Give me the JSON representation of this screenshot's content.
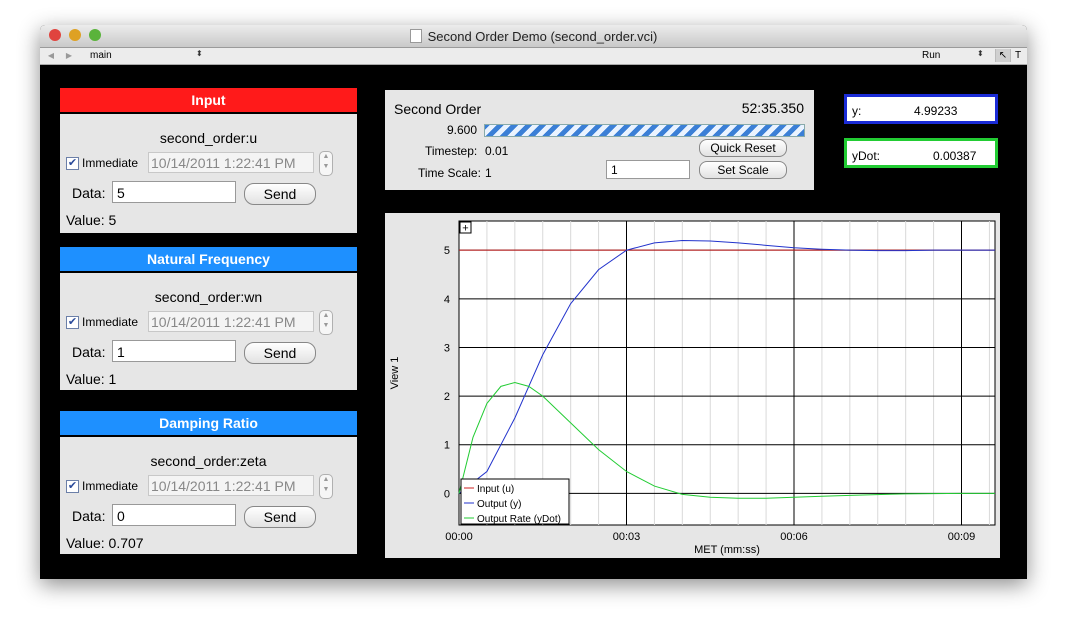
{
  "window": {
    "title": "Second Order Demo (second_order.vci)",
    "toolbar_selector": "main",
    "toolbar_mode": "Run",
    "toolbar_tool_pointer": "↖",
    "toolbar_tool_text": "T"
  },
  "panels": [
    {
      "header": "Input",
      "header_color": "#ff1a1a",
      "variable": "second_order:u",
      "immediate_label": "Immediate",
      "date": "10/14/2011   1:22:41 PM",
      "data_label": "Data:",
      "data_value": "5",
      "send_label": "Send",
      "value_line": "Value:  5"
    },
    {
      "header": "Natural Frequency",
      "header_color": "#1e90ff",
      "variable": "second_order:wn",
      "immediate_label": "Immediate",
      "date": "10/14/2011   1:22:41 PM",
      "data_label": "Data:",
      "data_value": "1",
      "send_label": "Send",
      "value_line": "Value:  1"
    },
    {
      "header": "Damping Ratio",
      "header_color": "#1e90ff",
      "variable": "second_order:zeta",
      "immediate_label": "Immediate",
      "date": "10/14/2011   1:22:41 PM",
      "data_label": "Data:",
      "data_value": "0",
      "send_label": "Send",
      "value_line": "Value:  0.707"
    }
  ],
  "status": {
    "name": "Second Order",
    "clock": "52:35.350",
    "rate": "9.600",
    "timestep_label": "Timestep:",
    "timestep_value": "0.01",
    "timescale_label": "Time Scale:",
    "timescale_value": "1",
    "scale_input": "1",
    "quick_reset_label": "Quick Reset",
    "set_scale_label": "Set Scale"
  },
  "readouts": {
    "y_label": "y:",
    "y_value": "4.99233",
    "y_color": "#1a2bd6",
    "ydot_label": "yDot:",
    "ydot_value": "0.00387",
    "ydot_color": "#22cc33"
  },
  "chart_data": {
    "type": "line",
    "xlabel": "MET (mm:ss)",
    "ylabel": "View 1",
    "x_tick_labels": [
      "00:00",
      "00:03",
      "00:06",
      "00:09"
    ],
    "x_ticks_sec": [
      0,
      3,
      6,
      9
    ],
    "xlim_sec": [
      0,
      9.6
    ],
    "y_ticks": [
      0,
      1,
      2,
      3,
      4,
      5
    ],
    "ylim": [
      -0.65,
      5.6
    ],
    "grid": true,
    "legend_position": "bottom-left",
    "zoom_button": "+",
    "series": [
      {
        "name": "Input (u)",
        "color": "#cc2222",
        "x_sec": [
          0,
          9.6
        ],
        "y": [
          5,
          5
        ]
      },
      {
        "name": "Output (y)",
        "color": "#2233cc",
        "x_sec": [
          0,
          0.5,
          1,
          1.5,
          2,
          2.5,
          3,
          3.5,
          4,
          4.5,
          5,
          5.5,
          6,
          6.5,
          7,
          7.5,
          8,
          8.5,
          9,
          9.6
        ],
        "y": [
          0,
          0.45,
          1.55,
          2.85,
          3.9,
          4.6,
          5.0,
          5.15,
          5.2,
          5.19,
          5.15,
          5.1,
          5.05,
          5.02,
          5.0,
          4.99,
          4.99,
          5.0,
          5.0,
          5.0
        ]
      },
      {
        "name": "Output Rate (yDot)",
        "color": "#22cc33",
        "x_sec": [
          0,
          0.25,
          0.5,
          0.75,
          1,
          1.25,
          1.5,
          2,
          2.5,
          3,
          3.5,
          4,
          4.5,
          5,
          5.5,
          6,
          6.5,
          7,
          8,
          9,
          9.6
        ],
        "y": [
          0,
          1.15,
          1.85,
          2.2,
          2.28,
          2.2,
          2.0,
          1.45,
          0.9,
          0.45,
          0.15,
          -0.02,
          -0.08,
          -0.1,
          -0.1,
          -0.08,
          -0.06,
          -0.04,
          -0.01,
          0.0,
          0.0
        ]
      }
    ]
  }
}
